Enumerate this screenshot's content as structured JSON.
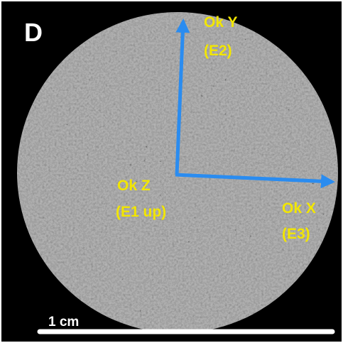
{
  "panel_label": "D",
  "axes": [
    {
      "name": "Ok Y",
      "eigen": "(E2)"
    },
    {
      "name": "Ok Z",
      "eigen": "(E1 up)"
    },
    {
      "name": "Ok X",
      "eigen": "(E3)"
    }
  ],
  "scale_bar": {
    "label": "1 cm"
  }
}
